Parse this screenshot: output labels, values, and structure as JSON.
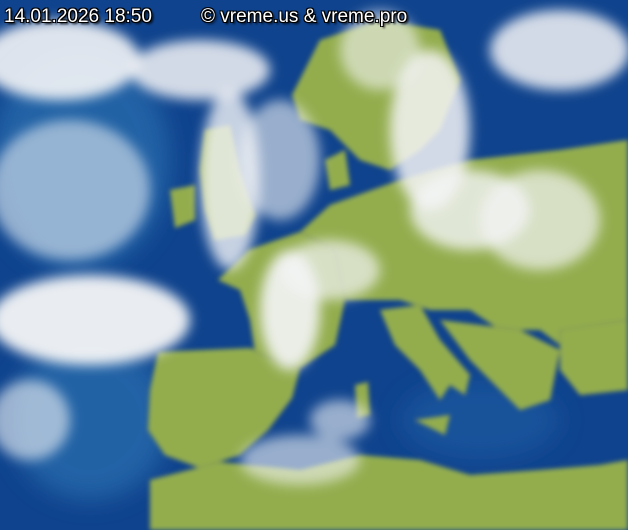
{
  "timestamp": "14.01.2026 18:50",
  "copyright": "© vreme.us & vreme.pro",
  "colors": {
    "sea": "#0d3f8a",
    "sea_light": "#2a6fb0",
    "land": "#93ad4e",
    "cloud": "#f2f4f6",
    "border": "#5a5a6a"
  }
}
